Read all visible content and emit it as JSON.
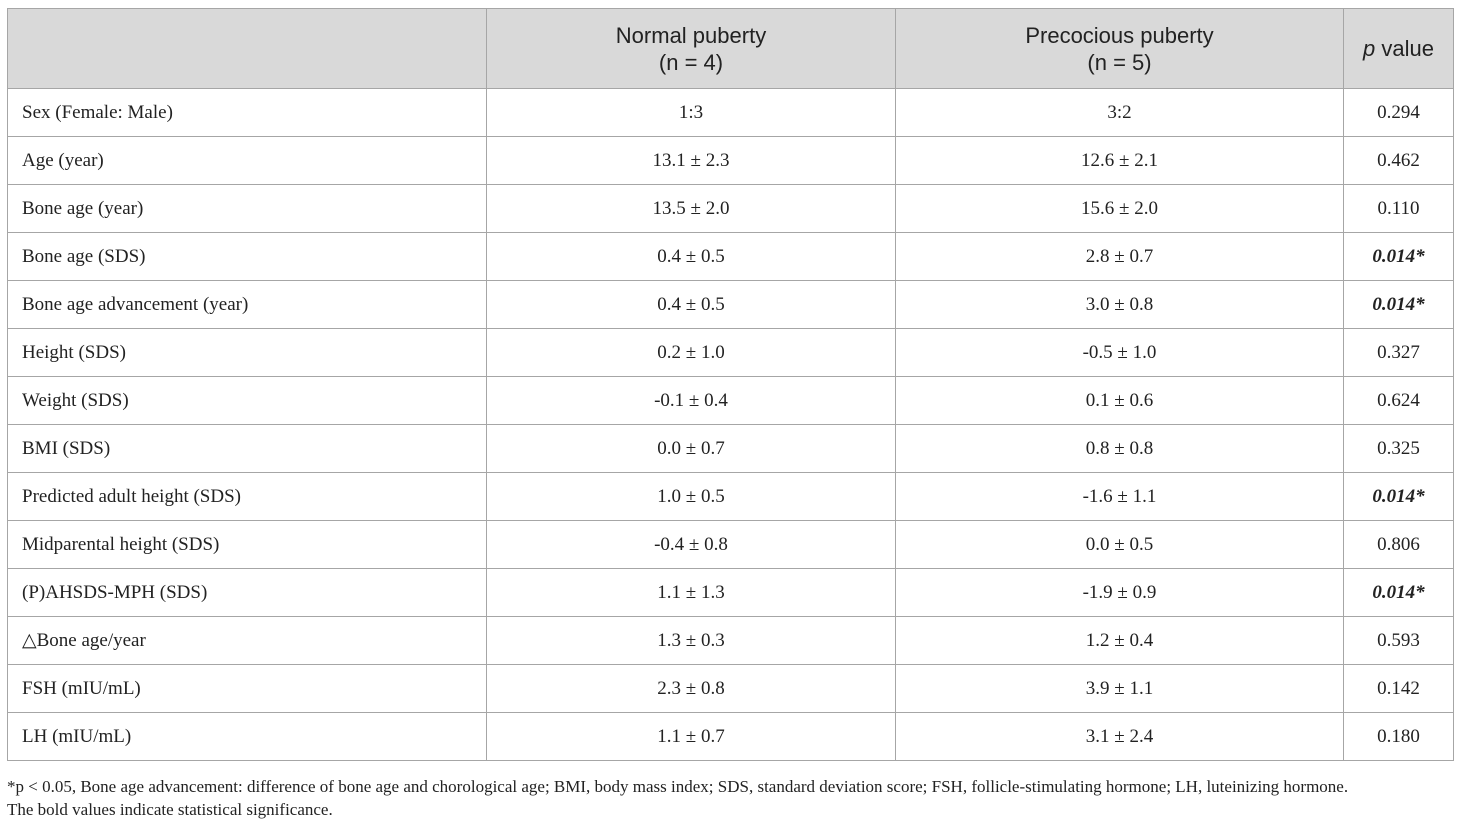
{
  "table": {
    "header": {
      "col1": "",
      "col2_line1": "Normal puberty",
      "col2_line2": "(n = 4)",
      "col3_line1": "Precocious puberty",
      "col3_line2": "(n = 5)",
      "col4_italic": "p",
      "col4_rest": " value"
    },
    "rows": [
      {
        "label": "Sex (Female: Male)",
        "normal": "1:3",
        "precocious": "3:2",
        "p": "0.294",
        "significant": false
      },
      {
        "label": "Age (year)",
        "normal": "13.1 ± 2.3",
        "precocious": "12.6 ± 2.1",
        "p": "0.462",
        "significant": false
      },
      {
        "label": "Bone age (year)",
        "normal": "13.5 ± 2.0",
        "precocious": "15.6 ± 2.0",
        "p": "0.110",
        "significant": false
      },
      {
        "label": "Bone age (SDS)",
        "normal": "0.4 ± 0.5",
        "precocious": "2.8 ± 0.7",
        "p": "0.014*",
        "significant": true
      },
      {
        "label": "Bone age advancement (year)",
        "normal": "0.4 ± 0.5",
        "precocious": "3.0 ± 0.8",
        "p": "0.014*",
        "significant": true
      },
      {
        "label": "Height (SDS)",
        "normal": "0.2 ± 1.0",
        "precocious": "-0.5 ± 1.0",
        "p": "0.327",
        "significant": false
      },
      {
        "label": "Weight (SDS)",
        "normal": "-0.1 ± 0.4",
        "precocious": "0.1 ± 0.6",
        "p": "0.624",
        "significant": false
      },
      {
        "label": "BMI (SDS)",
        "normal": "0.0 ± 0.7",
        "precocious": "0.8 ± 0.8",
        "p": "0.325",
        "significant": false
      },
      {
        "label": "Predicted adult height (SDS)",
        "normal": "1.0 ± 0.5",
        "precocious": "-1.6 ± 1.1",
        "p": "0.014*",
        "significant": true
      },
      {
        "label": "Midparental height (SDS)",
        "normal": "-0.4 ± 0.8",
        "precocious": "0.0 ± 0.5",
        "p": "0.806",
        "significant": false
      },
      {
        "label": "(P)AHSDS-MPH (SDS)",
        "normal": "1.1 ± 1.3",
        "precocious": "-1.9 ± 0.9",
        "p": "0.014*",
        "significant": true
      },
      {
        "label": "△Bone age/year",
        "normal": "1.3 ± 0.3",
        "precocious": "1.2 ± 0.4",
        "p": "0.593",
        "significant": false
      },
      {
        "label": "FSH (mIU/mL)",
        "normal": "2.3 ± 0.8",
        "precocious": "3.9 ± 1.1",
        "p": "0.142",
        "significant": false
      },
      {
        "label": "LH (mIU/mL)",
        "normal": "1.1 ± 0.7",
        "precocious": "3.1 ± 2.4",
        "p": "0.180",
        "significant": false
      }
    ]
  },
  "footnote": {
    "line1": "*p < 0.05, Bone age advancement: difference of bone age and chorological age; BMI, body mass index; SDS, standard deviation score; FSH, follicle-stimulating hormone; LH, luteinizing hormone.",
    "line2": "The bold values indicate statistical significance."
  },
  "colors": {
    "header_bg": "#d9d9d9",
    "border": "#a6a6a6",
    "text": "#222222"
  }
}
